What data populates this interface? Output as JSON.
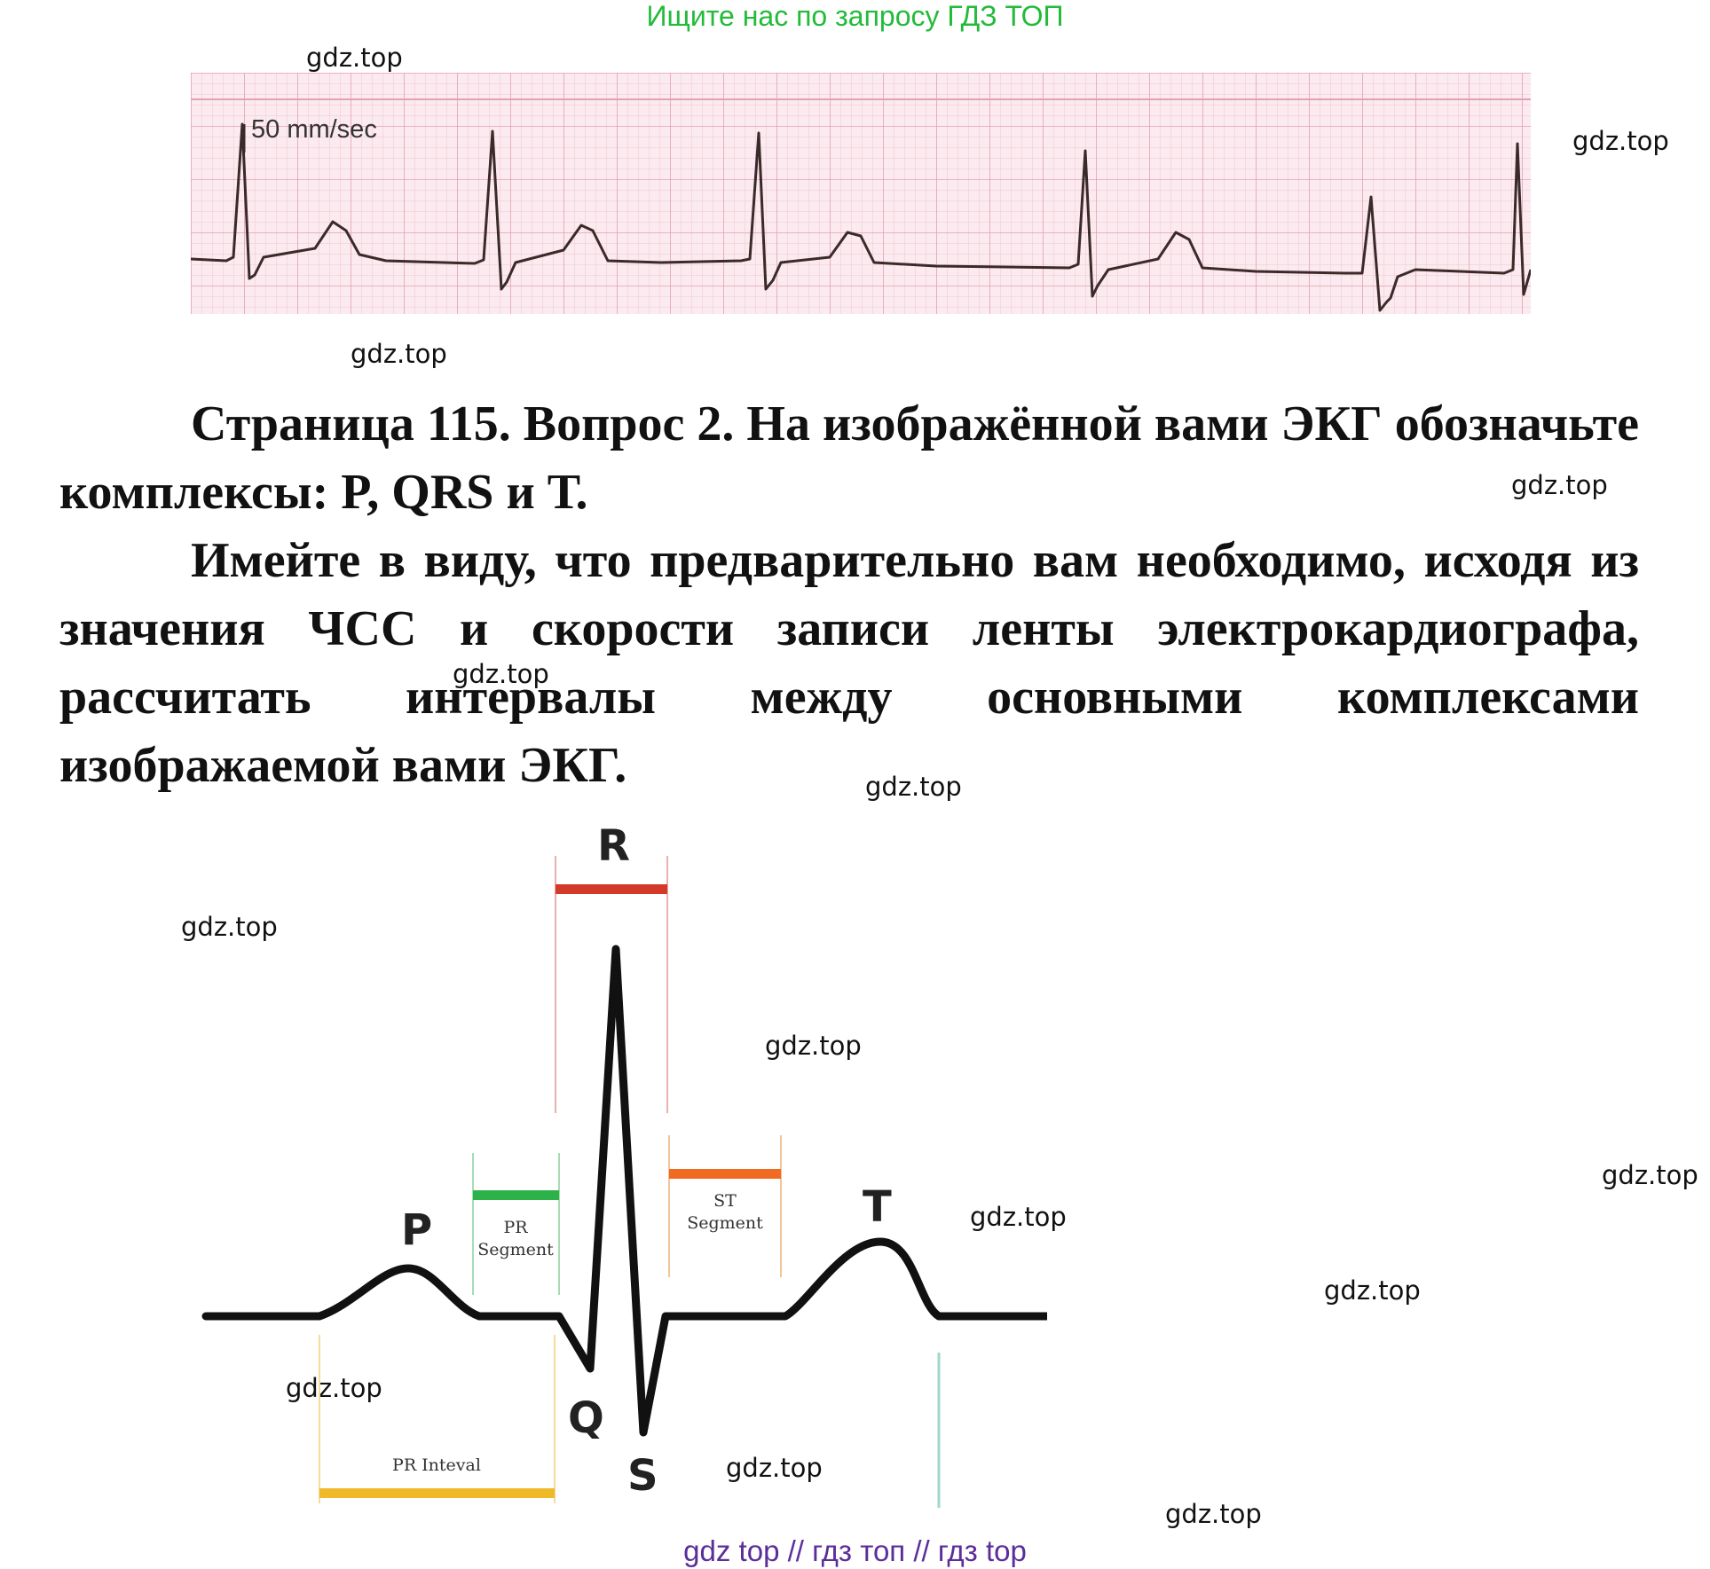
{
  "banner": "Ищите нас по запросу ГДЗ ТОП",
  "watermark": "gdz.top",
  "ecg_strip": {
    "speed_label": "50 mm/sec",
    "grid_color": "#e9a9b8",
    "background": "#fbe9ee",
    "trace_color": "#3a2a2a"
  },
  "question": {
    "line1": "Страница 115. Вопрос 2. На изображённой вами ЭКГ обозначьте комплексы: P, QRS и Т.",
    "line2": "Имейте в виду, что предварительно вам необходимо, исходя из значения ЧСС и скорости записи ленты электрокардиографа, рассчитать интервалы между основными комплексами изображаемой вами ЭКГ."
  },
  "diagram": {
    "labels": {
      "p": "P",
      "q": "Q",
      "r": "R",
      "s": "S",
      "t": "T",
      "pr_segment_1": "PR",
      "pr_segment_2": "Segment",
      "st_segment_1": "ST",
      "st_segment_2": "Segment",
      "pr_interval": "PR Inteval"
    },
    "colors": {
      "r": "#d43a2a",
      "pr_segment": "#2db24a",
      "st_segment": "#f06a22",
      "pr_interval": "#f0b92a",
      "t_end_line": "#9fd7cf",
      "trace": "#111111"
    }
  },
  "footer": "gdz top  //  гдз топ  //  гдз top"
}
